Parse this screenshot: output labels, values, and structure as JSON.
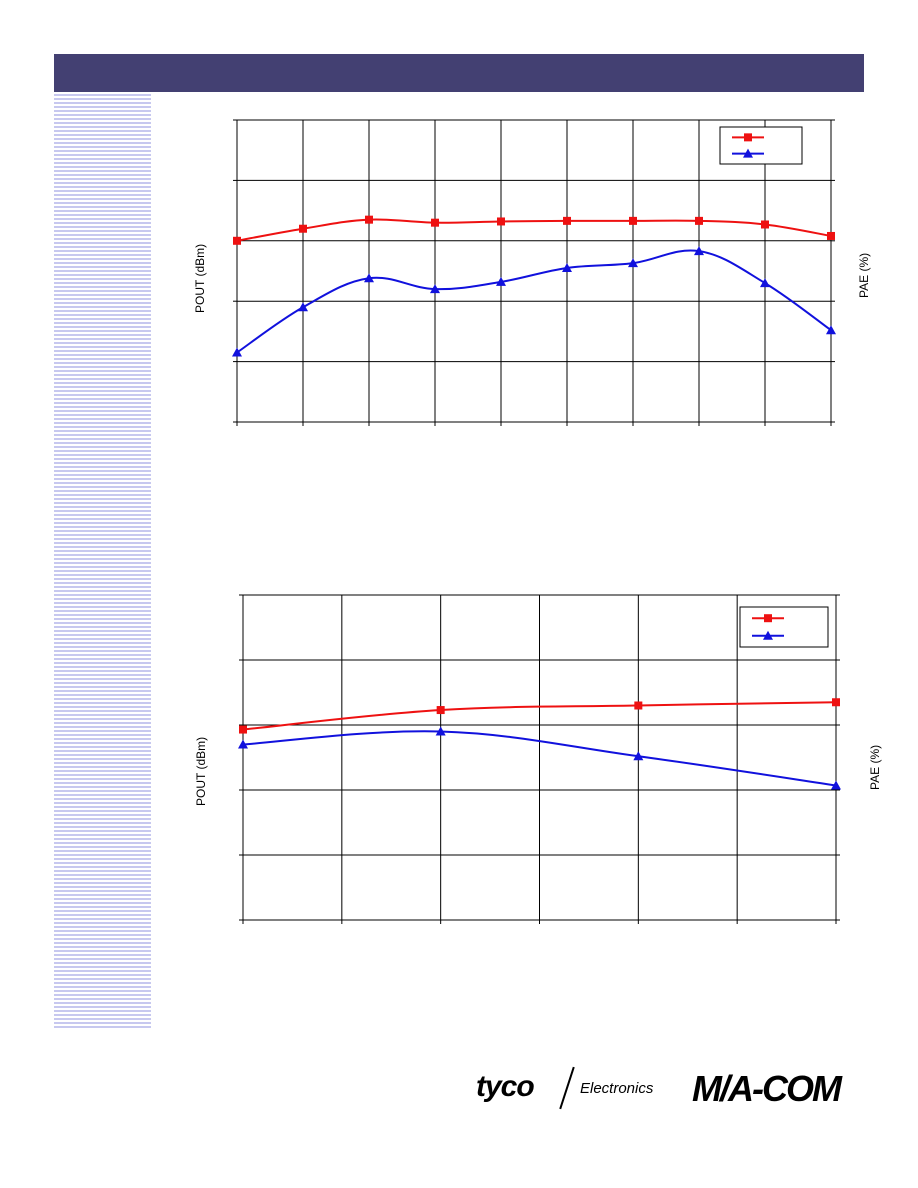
{
  "page": {
    "brand": {
      "tyco": "tyco",
      "electronics": "Electronics",
      "macom": "M/A-COM"
    }
  },
  "colors": {
    "header": "#434072",
    "stripe": "#c7c8ef",
    "series1": "#ee1111",
    "series2": "#1111dd"
  },
  "chart_data": [
    {
      "type": "line",
      "title": "",
      "xlabel": "",
      "ylabel": "POUT (dBm)",
      "ylabel_right": "PAE (%)",
      "x": [
        1,
        2,
        3,
        4,
        5,
        6,
        7,
        8,
        9,
        10
      ],
      "xlim": [
        1,
        10
      ],
      "ylim": [
        0,
        5
      ],
      "grid": true,
      "legend": "top-right",
      "series": [
        {
          "marker": "square",
          "color": "#ee1111",
          "values": [
            3.0,
            3.2,
            3.35,
            3.3,
            3.32,
            3.33,
            3.33,
            3.33,
            3.27,
            3.08
          ]
        },
        {
          "marker": "triangle",
          "color": "#1111dd",
          "values": [
            1.15,
            1.9,
            2.38,
            2.2,
            2.32,
            2.55,
            2.63,
            2.83,
            2.3,
            1.52
          ]
        }
      ]
    },
    {
      "type": "line",
      "title": "",
      "xlabel": "",
      "ylabel": "POUT  (dBm)",
      "ylabel_right": "PAE (%)",
      "x": [
        0,
        2,
        4,
        6
      ],
      "xlim": [
        0,
        6
      ],
      "ylim": [
        0,
        5
      ],
      "grid": true,
      "legend": "top-right",
      "series": [
        {
          "marker": "square",
          "color": "#ee1111",
          "values": [
            2.93,
            3.23,
            3.3,
            3.35
          ]
        },
        {
          "marker": "triangle",
          "color": "#1111dd",
          "values": [
            2.7,
            2.9,
            2.52,
            2.07
          ]
        }
      ]
    }
  ]
}
